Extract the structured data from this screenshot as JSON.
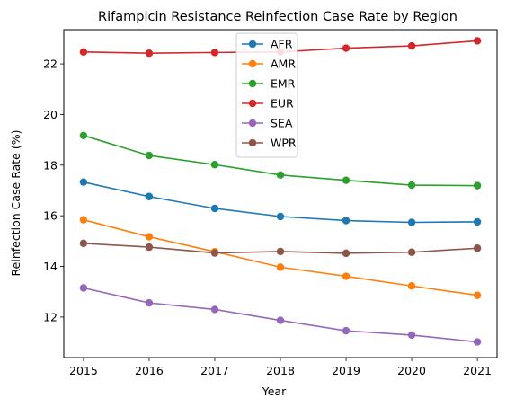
{
  "chart_data": {
    "type": "line",
    "title": "Rifampicin Resistance Reinfection Case Rate by Region",
    "xlabel": "Year",
    "ylabel": "Reinfection Case Rate (%)",
    "x": [
      2015,
      2016,
      2017,
      2018,
      2019,
      2020,
      2021
    ],
    "xlim": [
      2014.7,
      2021.3
    ],
    "ylim": [
      10.4,
      23.35
    ],
    "yticks": [
      12,
      14,
      16,
      18,
      20,
      22
    ],
    "grid": false,
    "legend_position": "top-center",
    "series": [
      {
        "name": "AFR",
        "color": "#1f77b4",
        "values": [
          17.33,
          16.76,
          16.29,
          15.97,
          15.81,
          15.74,
          15.76
        ]
      },
      {
        "name": "AMR",
        "color": "#ff7f0e",
        "values": [
          15.84,
          15.17,
          14.58,
          13.97,
          13.61,
          13.23,
          12.86
        ]
      },
      {
        "name": "EMR",
        "color": "#2ca02c",
        "values": [
          19.17,
          18.38,
          18.02,
          17.61,
          17.4,
          17.21,
          17.19
        ]
      },
      {
        "name": "EUR",
        "color": "#d62728",
        "values": [
          22.47,
          22.42,
          22.45,
          22.47,
          22.62,
          22.71,
          22.91
        ]
      },
      {
        "name": "SEA",
        "color": "#9467bd",
        "values": [
          13.15,
          12.56,
          12.3,
          11.87,
          11.46,
          11.29,
          11.02
        ]
      },
      {
        "name": "WPR",
        "color": "#8c564b",
        "values": [
          14.91,
          14.76,
          14.53,
          14.59,
          14.52,
          14.56,
          14.72
        ]
      }
    ]
  }
}
